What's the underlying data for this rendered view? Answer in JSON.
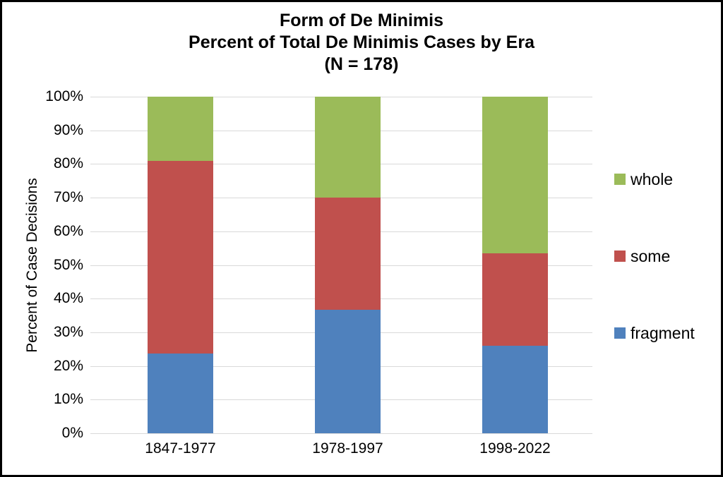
{
  "chart_data": {
    "type": "bar",
    "stacked": true,
    "title_lines": [
      "Form of De Minimis",
      "Percent of Total De Minimis Cases by Era",
      "(N = 178)"
    ],
    "ylabel": "Percent of Case Decisions",
    "categories": [
      "1847-1977",
      "1978-1997",
      "1998-2022"
    ],
    "series": [
      {
        "name": "fragment",
        "color": "#4f81bd",
        "values": [
          23.6,
          36.7,
          25.9
        ]
      },
      {
        "name": "some",
        "color": "#c0504d",
        "values": [
          57.3,
          33.3,
          27.6
        ]
      },
      {
        "name": "whole",
        "color": "#9bbb59",
        "values": [
          19.1,
          30.0,
          46.5
        ]
      }
    ],
    "ylim": [
      0,
      100
    ],
    "ytick_step": 10,
    "ytick_labels": [
      "0%",
      "10%",
      "20%",
      "30%",
      "40%",
      "50%",
      "60%",
      "70%",
      "80%",
      "90%",
      "100%"
    ],
    "grid": true,
    "gridline_color": "#d9d9d9",
    "legend": {
      "position": "right",
      "entries": [
        "whole",
        "some",
        "fragment"
      ]
    },
    "frame_border_color": "#000000",
    "background_color": "#ffffff"
  }
}
